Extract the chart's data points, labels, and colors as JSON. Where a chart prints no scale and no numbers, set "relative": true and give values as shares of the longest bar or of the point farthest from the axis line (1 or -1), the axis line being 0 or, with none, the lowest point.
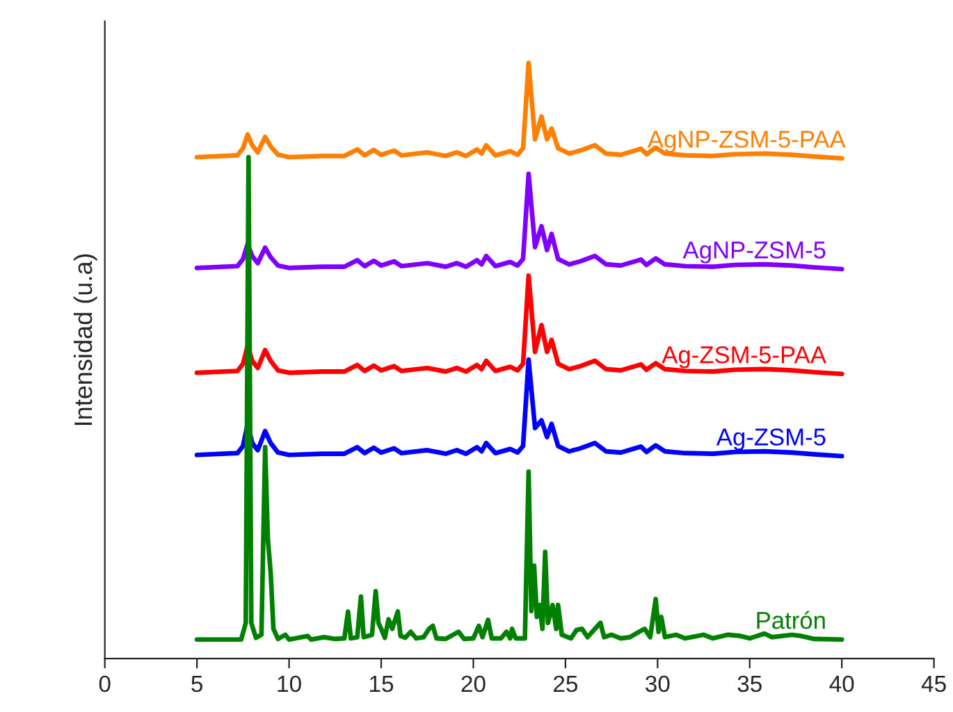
{
  "chart_data": {
    "type": "line",
    "relative": true,
    "ylabel": "Intensidad (u.a)",
    "xlim": [
      0,
      45
    ],
    "xticks": [
      0,
      5,
      10,
      15,
      20,
      25,
      30,
      35,
      40,
      45
    ],
    "grid": false,
    "legend": false,
    "marker": "none",
    "line_style": "solid",
    "series": [
      {
        "name": "Patrón",
        "color": "#008000",
        "x": [
          5,
          7.4,
          7.65,
          7.8,
          7.95,
          8.2,
          8.5,
          8.7,
          8.85,
          9.0,
          9.15,
          9.4,
          9.8,
          10.0,
          11.0,
          11.2,
          11.9,
          12.5,
          13.0,
          13.2,
          13.35,
          13.7,
          13.9,
          14.05,
          14.5,
          14.7,
          14.85,
          15.0,
          15.2,
          15.4,
          15.6,
          15.9,
          16.05,
          16.3,
          16.6,
          16.9,
          17.3,
          17.6,
          17.8,
          18.0,
          18.5,
          19.2,
          19.5,
          20.0,
          20.3,
          20.5,
          20.8,
          21.0,
          21.5,
          21.8,
          22.0,
          22.1,
          22.3,
          22.8,
          23.0,
          23.15,
          23.3,
          23.45,
          23.6,
          23.75,
          23.9,
          24.05,
          24.3,
          24.5,
          24.6,
          24.8,
          25.3,
          25.6,
          25.9,
          26.2,
          26.6,
          26.9,
          27.1,
          27.5,
          28.0,
          28.5,
          29.0,
          29.3,
          29.6,
          29.9,
          30.05,
          30.2,
          30.4,
          31.0,
          31.5,
          32.5,
          33.0,
          33.8,
          34.5,
          35.0,
          35.8,
          36.2,
          37.3,
          37.8,
          38.5,
          40
        ],
        "values": [
          0.032,
          0.032,
          0.06,
          0.842,
          0.06,
          0.035,
          0.04,
          0.355,
          0.2,
          0.145,
          0.05,
          0.033,
          0.04,
          0.032,
          0.038,
          0.032,
          0.036,
          0.033,
          0.034,
          0.079,
          0.034,
          0.036,
          0.104,
          0.036,
          0.04,
          0.113,
          0.06,
          0.05,
          0.035,
          0.066,
          0.05,
          0.079,
          0.038,
          0.035,
          0.045,
          0.034,
          0.036,
          0.05,
          0.055,
          0.034,
          0.033,
          0.045,
          0.033,
          0.034,
          0.055,
          0.036,
          0.065,
          0.034,
          0.034,
          0.045,
          0.034,
          0.05,
          0.034,
          0.034,
          0.314,
          0.08,
          0.156,
          0.07,
          0.09,
          0.05,
          0.179,
          0.06,
          0.09,
          0.05,
          0.09,
          0.04,
          0.034,
          0.048,
          0.05,
          0.036,
          0.05,
          0.06,
          0.036,
          0.04,
          0.034,
          0.036,
          0.045,
          0.05,
          0.036,
          0.1,
          0.045,
          0.07,
          0.036,
          0.04,
          0.034,
          0.04,
          0.034,
          0.04,
          0.038,
          0.034,
          0.042,
          0.036,
          0.04,
          0.038,
          0.033,
          0.032
        ]
      },
      {
        "name": "Ag-ZSM-5",
        "color": "#0000ff",
        "x": [
          5,
          7.2,
          7.5,
          7.75,
          8.0,
          8.3,
          8.7,
          9.0,
          9.4,
          10,
          11.8,
          13,
          13.7,
          14.1,
          14.6,
          15.0,
          15.4,
          15.7,
          16.1,
          17.5,
          18.5,
          19.1,
          19.6,
          20.2,
          20.45,
          20.7,
          21.2,
          22.0,
          22.4,
          22.7,
          23.0,
          23.35,
          23.7,
          24.0,
          24.25,
          24.6,
          25.2,
          25.8,
          26.6,
          27.2,
          28.0,
          29.1,
          29.4,
          29.9,
          30.4,
          31.5,
          33,
          34.2,
          35.8,
          37.3,
          38.5,
          40
        ],
        "values": [
          0.342,
          0.345,
          0.357,
          0.394,
          0.362,
          0.35,
          0.382,
          0.362,
          0.346,
          0.342,
          0.344,
          0.344,
          0.355,
          0.345,
          0.354,
          0.346,
          0.35,
          0.353,
          0.345,
          0.35,
          0.344,
          0.35,
          0.344,
          0.355,
          0.348,
          0.362,
          0.345,
          0.352,
          0.346,
          0.357,
          0.502,
          0.387,
          0.4,
          0.372,
          0.394,
          0.357,
          0.348,
          0.353,
          0.362,
          0.348,
          0.346,
          0.356,
          0.347,
          0.358,
          0.348,
          0.345,
          0.344,
          0.347,
          0.348,
          0.346,
          0.343,
          0.34
        ]
      },
      {
        "name": "Ag-ZSM-5-PAA",
        "color": "#ff0000",
        "x": [
          5,
          7.2,
          7.5,
          7.75,
          8.0,
          8.3,
          8.7,
          9.0,
          9.4,
          10,
          11.8,
          13,
          13.7,
          14.1,
          14.6,
          15.0,
          15.4,
          15.7,
          16.1,
          17.5,
          18.5,
          19.1,
          19.6,
          20.2,
          20.45,
          20.7,
          21.2,
          22.0,
          22.4,
          22.7,
          23.0,
          23.35,
          23.7,
          24.0,
          24.25,
          24.6,
          25.2,
          25.8,
          26.6,
          27.2,
          28.0,
          29.1,
          29.4,
          29.9,
          30.4,
          31.5,
          33,
          34.2,
          35.8,
          37.3,
          38.5,
          40
        ],
        "values": [
          0.48,
          0.483,
          0.495,
          0.525,
          0.5,
          0.488,
          0.518,
          0.5,
          0.484,
          0.48,
          0.482,
          0.482,
          0.493,
          0.483,
          0.492,
          0.484,
          0.488,
          0.491,
          0.483,
          0.488,
          0.482,
          0.488,
          0.482,
          0.493,
          0.486,
          0.5,
          0.483,
          0.49,
          0.484,
          0.495,
          0.643,
          0.515,
          0.56,
          0.515,
          0.535,
          0.495,
          0.486,
          0.491,
          0.5,
          0.486,
          0.484,
          0.494,
          0.485,
          0.496,
          0.486,
          0.483,
          0.482,
          0.485,
          0.486,
          0.484,
          0.481,
          0.478
        ]
      },
      {
        "name": "AgNP-ZSM-5",
        "color": "#8000ff",
        "x": [
          5,
          7.2,
          7.5,
          7.75,
          8.0,
          8.3,
          8.7,
          9.0,
          9.4,
          10,
          11.8,
          13,
          13.7,
          14.1,
          14.6,
          15.0,
          15.4,
          15.7,
          16.1,
          17.5,
          18.5,
          19.1,
          19.6,
          20.2,
          20.45,
          20.7,
          21.2,
          22.0,
          22.4,
          22.7,
          23.0,
          23.35,
          23.7,
          24.0,
          24.25,
          24.6,
          25.2,
          25.8,
          26.6,
          27.2,
          28.0,
          29.1,
          29.4,
          29.9,
          30.4,
          31.5,
          33,
          34.2,
          35.8,
          37.3,
          38.5,
          40
        ],
        "values": [
          0.656,
          0.659,
          0.671,
          0.696,
          0.676,
          0.664,
          0.69,
          0.674,
          0.66,
          0.656,
          0.658,
          0.658,
          0.669,
          0.659,
          0.668,
          0.66,
          0.664,
          0.667,
          0.659,
          0.664,
          0.658,
          0.664,
          0.658,
          0.669,
          0.662,
          0.676,
          0.659,
          0.666,
          0.66,
          0.671,
          0.814,
          0.691,
          0.726,
          0.686,
          0.713,
          0.671,
          0.662,
          0.667,
          0.676,
          0.662,
          0.66,
          0.67,
          0.661,
          0.672,
          0.662,
          0.659,
          0.658,
          0.661,
          0.662,
          0.66,
          0.657,
          0.654
        ]
      },
      {
        "name": "AgNP-ZSM-5-PAA",
        "color": "#ff8000",
        "x": [
          5,
          7.2,
          7.5,
          7.75,
          8.0,
          8.3,
          8.7,
          9.0,
          9.4,
          10,
          11.8,
          13,
          13.7,
          14.1,
          14.6,
          15.0,
          15.4,
          15.7,
          16.1,
          17.5,
          18.5,
          19.1,
          19.6,
          20.2,
          20.45,
          20.7,
          21.2,
          22.0,
          22.4,
          22.7,
          23.0,
          23.35,
          23.7,
          24.0,
          24.25,
          24.6,
          25.2,
          25.8,
          26.6,
          27.2,
          28.0,
          29.1,
          29.4,
          29.9,
          30.4,
          31.5,
          33,
          34.2,
          35.8,
          37.3,
          38.5,
          40
        ],
        "values": [
          0.842,
          0.845,
          0.857,
          0.88,
          0.862,
          0.85,
          0.876,
          0.86,
          0.846,
          0.842,
          0.844,
          0.844,
          0.855,
          0.845,
          0.854,
          0.846,
          0.85,
          0.853,
          0.845,
          0.85,
          0.844,
          0.85,
          0.844,
          0.855,
          0.848,
          0.862,
          0.845,
          0.852,
          0.846,
          0.857,
          1.0,
          0.872,
          0.91,
          0.872,
          0.89,
          0.857,
          0.848,
          0.853,
          0.862,
          0.848,
          0.846,
          0.856,
          0.847,
          0.858,
          0.848,
          0.845,
          0.844,
          0.847,
          0.848,
          0.846,
          0.843,
          0.84
        ]
      }
    ]
  }
}
